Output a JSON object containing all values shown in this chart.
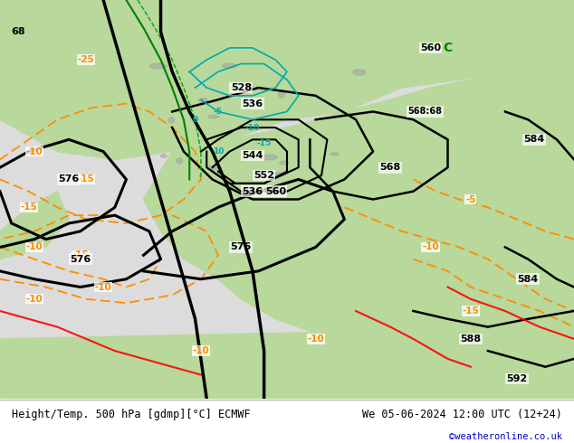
{
  "title_left": "Height/Temp. 500 hPa [gdmp][°C] ECMWF",
  "title_right": "We 05-06-2024 12:00 UTC (12+24)",
  "credit": "©weatheronline.co.uk",
  "land_color": "#b8d89c",
  "sea_color": "#dcdcdc",
  "footer_bg": "#ffffff",
  "fig_width": 6.34,
  "fig_height": 4.9,
  "dpi": 100
}
